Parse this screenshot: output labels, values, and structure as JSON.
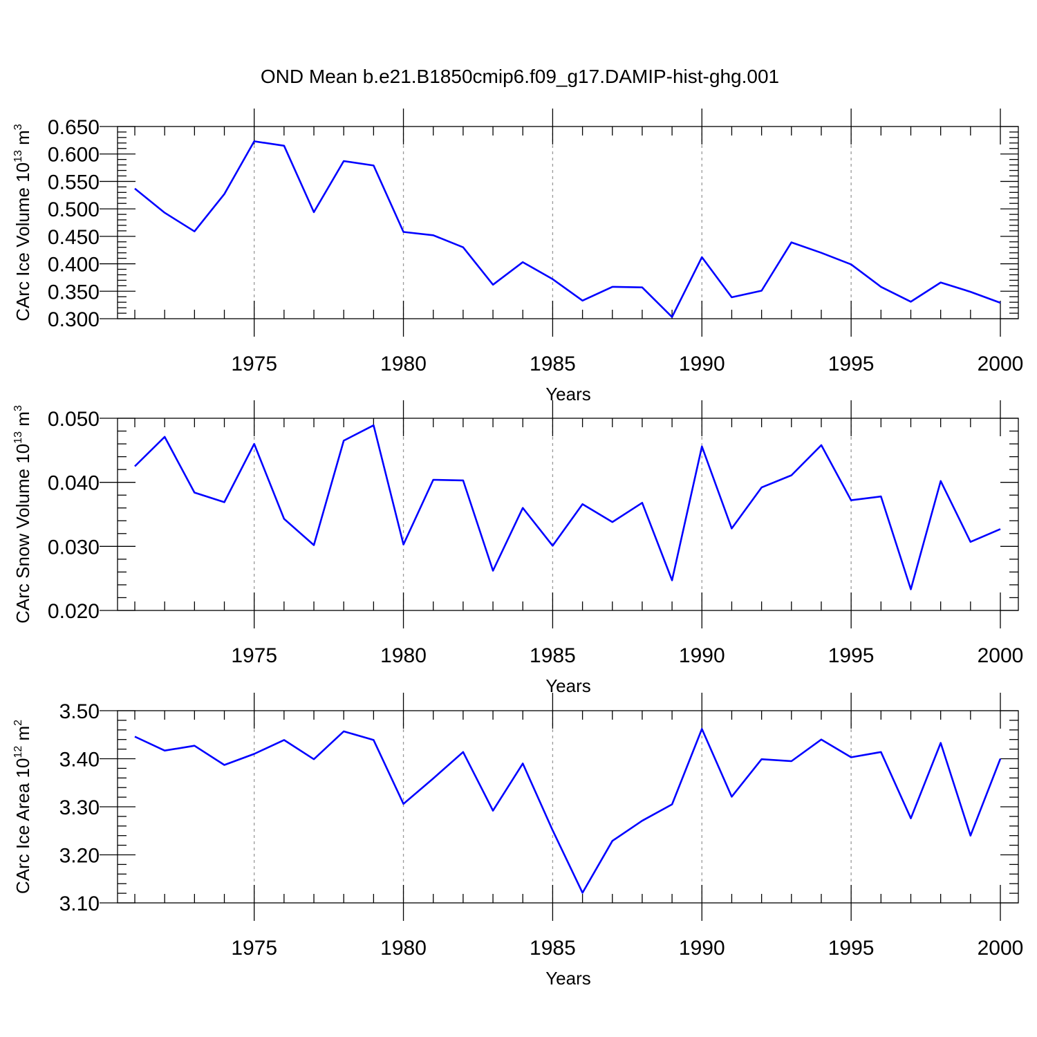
{
  "title": "OND Mean b.e21.B1850cmip6.f09_g17.DAMIP-hist-ghg.001",
  "colors": {
    "line": "#0000ff",
    "frame": "#000000",
    "grid": "#999999"
  },
  "chart_data": [
    {
      "type": "line",
      "ylabel": {
        "text": "CArc Ice Volume 10",
        "sup": "13",
        "unit": " m",
        "unit_sup": "3"
      },
      "xlabel": "Years",
      "xlim": [
        1971,
        2000
      ],
      "ylim": [
        0.3,
        0.65
      ],
      "yticks": [
        "0.300",
        "0.350",
        "0.400",
        "0.450",
        "0.500",
        "0.550",
        "0.600",
        "0.650"
      ],
      "xticks": [
        "1975",
        "1980",
        "1985",
        "1990",
        "1995",
        "2000"
      ],
      "grid": "vertical dashed at labeled years",
      "series": [
        {
          "x": [
            1971,
            1972,
            1973,
            1974,
            1975,
            1976,
            1977,
            1978,
            1979,
            1980,
            1981,
            1982,
            1983,
            1984,
            1985,
            1986,
            1987,
            1988,
            1989,
            1990,
            1991,
            1992,
            1993,
            1994,
            1995,
            1996,
            1997,
            1998,
            1999,
            2000
          ],
          "values": [
            0.537,
            0.493,
            0.459,
            0.527,
            0.623,
            0.615,
            0.494,
            0.587,
            0.579,
            0.458,
            0.452,
            0.43,
            0.362,
            0.403,
            0.372,
            0.333,
            0.358,
            0.357,
            0.303,
            0.412,
            0.339,
            0.351,
            0.439,
            0.42,
            0.399,
            0.358,
            0.331,
            0.366,
            0.349,
            0.329
          ]
        }
      ]
    },
    {
      "type": "line",
      "ylabel": {
        "text": "CArc Snow Volume 10",
        "sup": "13",
        "unit": " m",
        "unit_sup": "3"
      },
      "xlabel": "Years",
      "xlim": [
        1971,
        2000
      ],
      "ylim": [
        0.02,
        0.05
      ],
      "yticks": [
        "0.020",
        "0.030",
        "0.040",
        "0.050"
      ],
      "xticks": [
        "1975",
        "1980",
        "1985",
        "1990",
        "1995",
        "2000"
      ],
      "grid": "vertical dashed at labeled years",
      "series": [
        {
          "x": [
            1971,
            1972,
            1973,
            1974,
            1975,
            1976,
            1977,
            1978,
            1979,
            1980,
            1981,
            1982,
            1983,
            1984,
            1985,
            1986,
            1987,
            1988,
            1989,
            1990,
            1991,
            1992,
            1993,
            1994,
            1995,
            1996,
            1997,
            1998,
            1999,
            2000
          ],
          "values": [
            0.0425,
            0.0471,
            0.0384,
            0.0369,
            0.046,
            0.0343,
            0.0302,
            0.0465,
            0.0489,
            0.0303,
            0.0404,
            0.0403,
            0.0262,
            0.036,
            0.0301,
            0.0366,
            0.0338,
            0.0368,
            0.0247,
            0.0456,
            0.0328,
            0.0392,
            0.0411,
            0.0458,
            0.0372,
            0.0378,
            0.0233,
            0.0402,
            0.0307,
            0.0327
          ]
        }
      ]
    },
    {
      "type": "line",
      "ylabel": {
        "text": "CArc Ice Area 10",
        "sup": "12",
        "unit": " m",
        "unit_sup": "2"
      },
      "xlabel": "Years",
      "xlim": [
        1971,
        2000
      ],
      "ylim": [
        3.1,
        3.5
      ],
      "yticks": [
        "3.10",
        "3.20",
        "3.30",
        "3.40",
        "3.50"
      ],
      "xticks": [
        "1975",
        "1980",
        "1985",
        "1990",
        "1995",
        "2000"
      ],
      "grid": "vertical dashed at labeled years",
      "series": [
        {
          "x": [
            1971,
            1972,
            1973,
            1974,
            1975,
            1976,
            1977,
            1978,
            1979,
            1980,
            1981,
            1982,
            1983,
            1984,
            1985,
            1986,
            1987,
            1988,
            1989,
            1990,
            1991,
            1992,
            1993,
            1994,
            1995,
            1996,
            1997,
            1998,
            1999,
            2000
          ],
          "values": [
            3.446,
            3.417,
            3.427,
            3.387,
            3.41,
            3.439,
            3.399,
            3.457,
            3.439,
            3.306,
            3.359,
            3.414,
            3.292,
            3.39,
            3.251,
            3.121,
            3.229,
            3.271,
            3.305,
            3.462,
            3.321,
            3.399,
            3.395,
            3.44,
            3.403,
            3.414,
            3.276,
            3.433,
            3.24,
            3.4
          ]
        }
      ]
    }
  ]
}
